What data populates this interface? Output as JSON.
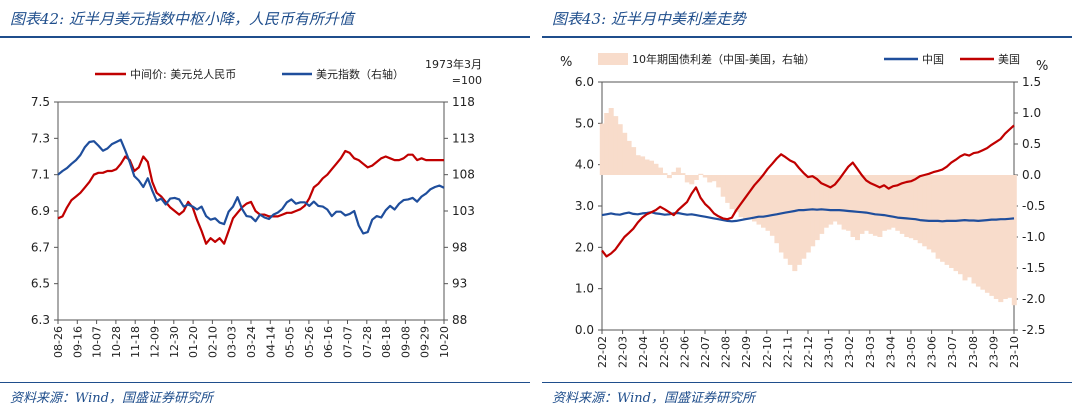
{
  "left": {
    "title": "图表42:  近半月美元指数中枢小降，人民币有所升值",
    "source": "资料来源：Wind，国盛证券研究所",
    "note_line1": "1973年3月",
    "note_line2": "=100"
  },
  "right": {
    "title": "图表43:  近半月中美利差走势",
    "source": "资料来源：Wind，国盛证券研究所",
    "left_unit": "%",
    "right_unit": "%"
  },
  "chart_data": [
    {
      "type": "line",
      "colors": {
        "cny": "#c00000",
        "dxy": "#1f4e9c"
      },
      "x_tick_labels": [
        "08-26",
        "09-16",
        "10-07",
        "10-28",
        "11-18",
        "12-09",
        "12-30",
        "01-20",
        "02-10",
        "03-03",
        "03-24",
        "04-14",
        "05-05",
        "05-26",
        "06-16",
        "07-07",
        "07-28",
        "08-18",
        "09-08",
        "09-29",
        "10-20"
      ],
      "y_left": {
        "ticks": [
          "6.3",
          "6.5",
          "6.7",
          "6.9",
          "7.1",
          "7.3",
          "7.5"
        ],
        "range": [
          6.3,
          7.5
        ]
      },
      "y_right": {
        "ticks": [
          "88",
          "93",
          "98",
          "103",
          "108",
          "113",
          "118"
        ],
        "range": [
          88,
          118
        ]
      },
      "series": [
        {
          "name": "中间价: 美元兑人民币",
          "axis": "left",
          "values": [
            6.86,
            6.87,
            6.92,
            6.96,
            6.98,
            7.0,
            7.03,
            7.06,
            7.1,
            7.11,
            7.11,
            7.12,
            7.12,
            7.13,
            7.16,
            7.2,
            7.18,
            7.12,
            7.14,
            7.2,
            7.17,
            7.06,
            7.0,
            6.98,
            6.95,
            6.92,
            6.9,
            6.88,
            6.9,
            6.95,
            6.92,
            6.85,
            6.79,
            6.72,
            6.75,
            6.73,
            6.75,
            6.72,
            6.79,
            6.86,
            6.89,
            6.92,
            6.94,
            6.95,
            6.9,
            6.88,
            6.88,
            6.87,
            6.87,
            6.87,
            6.88,
            6.89,
            6.89,
            6.9,
            6.91,
            6.93,
            6.97,
            7.03,
            7.05,
            7.08,
            7.1,
            7.13,
            7.16,
            7.19,
            7.23,
            7.22,
            7.19,
            7.18,
            7.16,
            7.14,
            7.15,
            7.17,
            7.19,
            7.2,
            7.19,
            7.18,
            7.18,
            7.19,
            7.21,
            7.21,
            7.18,
            7.19,
            7.18,
            7.18,
            7.18,
            7.18,
            7.18
          ]
        },
        {
          "name": "美元指数（右轴）",
          "axis": "right",
          "values": [
            108.0,
            108.5,
            108.9,
            109.5,
            110.0,
            110.7,
            111.8,
            112.5,
            112.6,
            112.0,
            111.3,
            111.6,
            112.2,
            112.5,
            112.8,
            111.3,
            109.7,
            107.8,
            107.2,
            106.3,
            107.5,
            105.8,
            104.4,
            104.7,
            103.9,
            104.7,
            104.8,
            104.6,
            103.6,
            103.9,
            103.6,
            103.2,
            103.6,
            102.3,
            101.8,
            102.0,
            101.4,
            101.2,
            102.9,
            103.6,
            104.9,
            103.3,
            102.3,
            102.2,
            101.6,
            102.5,
            102.1,
            101.9,
            102.5,
            102.8,
            103.3,
            104.2,
            104.6,
            104.0,
            104.2,
            104.2,
            103.7,
            104.3,
            103.7,
            103.6,
            103.2,
            102.3,
            102.9,
            102.9,
            102.4,
            102.6,
            103.0,
            101.0,
            99.9,
            100.1,
            101.8,
            102.3,
            102.1,
            103.1,
            103.7,
            103.2,
            104.0,
            104.5,
            104.6,
            104.8,
            104.3,
            105.0,
            105.4,
            106.0,
            106.3,
            106.5,
            106.2
          ]
        }
      ]
    },
    {
      "type": "line",
      "colors": {
        "spread": "#f8dccb",
        "china": "#1f4e9c",
        "us": "#c00000"
      },
      "x_tick_labels": [
        "22-02",
        "22-03",
        "22-04",
        "22-05",
        "22-06",
        "22-07",
        "22-08",
        "22-09",
        "22-10",
        "22-11",
        "22-12",
        "23-01",
        "23-02",
        "23-03",
        "23-04",
        "23-05",
        "23-06",
        "23-07",
        "23-08",
        "23-09",
        "23-10"
      ],
      "y_left": {
        "ticks": [
          "0.0",
          "1.0",
          "2.0",
          "3.0",
          "4.0",
          "5.0",
          "6.0"
        ],
        "range": [
          0,
          6
        ]
      },
      "y_right": {
        "ticks": [
          "-2.5",
          "-2.0",
          "-1.5",
          "-1.0",
          "-0.5",
          "0.0",
          "0.5",
          "1.0",
          "1.5"
        ],
        "range": [
          -2.5,
          1.5
        ]
      },
      "series": [
        {
          "name": "10年期国债利差（中国-美国，右轴）",
          "axis": "right",
          "kind": "bar",
          "values": [
            0.83,
            1.0,
            1.08,
            0.95,
            0.82,
            0.68,
            0.55,
            0.45,
            0.32,
            0.3,
            0.25,
            0.23,
            0.18,
            0.12,
            0.03,
            -0.05,
            0.05,
            0.12,
            0.03,
            -0.12,
            -0.15,
            -0.08,
            0.02,
            -0.04,
            -0.12,
            -0.1,
            -0.2,
            -0.35,
            -0.45,
            -0.55,
            -0.6,
            -0.68,
            -0.72,
            -0.7,
            -0.75,
            -0.8,
            -0.85,
            -0.9,
            -0.98,
            -1.1,
            -1.25,
            -1.35,
            -1.45,
            -1.55,
            -1.45,
            -1.35,
            -1.25,
            -1.15,
            -1.05,
            -0.95,
            -0.85,
            -0.8,
            -0.75,
            -0.8,
            -0.88,
            -0.9,
            -1.0,
            -1.05,
            -0.95,
            -0.9,
            -0.95,
            -0.98,
            -1.0,
            -0.9,
            -0.88,
            -0.85,
            -0.9,
            -0.95,
            -1.0,
            -1.02,
            -1.05,
            -1.1,
            -1.15,
            -1.2,
            -1.25,
            -1.35,
            -1.4,
            -1.45,
            -1.5,
            -1.55,
            -1.6,
            -1.7,
            -1.65,
            -1.75,
            -1.8,
            -1.85,
            -1.9,
            -1.95,
            -2.0,
            -2.05,
            -2.0,
            -1.98,
            -2.1
          ]
        },
        {
          "name": "中国",
          "axis": "left",
          "values": [
            2.78,
            2.8,
            2.82,
            2.8,
            2.79,
            2.82,
            2.84,
            2.81,
            2.8,
            2.82,
            2.83,
            2.85,
            2.82,
            2.81,
            2.79,
            2.8,
            2.82,
            2.83,
            2.81,
            2.79,
            2.8,
            2.78,
            2.76,
            2.74,
            2.72,
            2.7,
            2.68,
            2.66,
            2.64,
            2.63,
            2.64,
            2.66,
            2.68,
            2.7,
            2.72,
            2.74,
            2.74,
            2.76,
            2.78,
            2.8,
            2.82,
            2.84,
            2.86,
            2.88,
            2.9,
            2.9,
            2.91,
            2.92,
            2.91,
            2.92,
            2.91,
            2.9,
            2.9,
            2.9,
            2.89,
            2.88,
            2.87,
            2.86,
            2.85,
            2.84,
            2.82,
            2.8,
            2.79,
            2.78,
            2.76,
            2.74,
            2.72,
            2.71,
            2.7,
            2.69,
            2.68,
            2.66,
            2.65,
            2.64,
            2.64,
            2.64,
            2.63,
            2.64,
            2.64,
            2.64,
            2.65,
            2.66,
            2.65,
            2.65,
            2.64,
            2.65,
            2.66,
            2.67,
            2.67,
            2.68,
            2.68,
            2.69,
            2.7
          ]
        },
        {
          "name": "美国",
          "axis": "left",
          "values": [
            1.92,
            1.78,
            1.85,
            1.95,
            2.1,
            2.25,
            2.35,
            2.45,
            2.6,
            2.72,
            2.8,
            2.85,
            2.9,
            2.98,
            2.92,
            2.85,
            2.78,
            2.9,
            3.0,
            3.1,
            3.3,
            3.45,
            3.2,
            3.05,
            2.95,
            2.82,
            2.75,
            2.7,
            2.68,
            2.72,
            2.9,
            3.05,
            3.2,
            3.35,
            3.5,
            3.62,
            3.75,
            3.9,
            4.02,
            4.15,
            4.25,
            4.18,
            4.1,
            4.05,
            3.92,
            3.8,
            3.7,
            3.72,
            3.65,
            3.55,
            3.5,
            3.45,
            3.52,
            3.65,
            3.8,
            3.95,
            4.05,
            3.9,
            3.75,
            3.62,
            3.55,
            3.5,
            3.45,
            3.5,
            3.42,
            3.48,
            3.5,
            3.55,
            3.58,
            3.6,
            3.65,
            3.72,
            3.75,
            3.78,
            3.82,
            3.85,
            3.88,
            3.95,
            4.05,
            4.12,
            4.2,
            4.25,
            4.22,
            4.28,
            4.3,
            4.35,
            4.4,
            4.48,
            4.55,
            4.62,
            4.75,
            4.85,
            4.95
          ]
        }
      ]
    }
  ]
}
